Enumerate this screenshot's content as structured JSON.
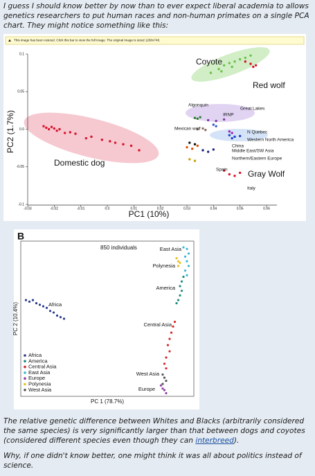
{
  "post": {
    "intro": "I guess I should know better by now than to ever expect liberal academia to allows genetics researchers to put human races and non-human primates on a single PCA chart. They might notice something like this:",
    "body": [
      [
        "The relative genetic difference between Whites and Blacks (arbitrarily considered the same species) is very significantly larger than that between dogs and coyotes (considered different species even though they can ",
        "interbreed",
        ")."
      ],
      [
        "Why, if one didn't know better, one might think it was all about politics instead of science."
      ]
    ]
  },
  "notice": "This image has been resized. Click this bar to view the full image. The original image is sized 1280x748.",
  "chart_data": [
    {
      "type": "scatter",
      "xlabel": "PC1 (10%)",
      "ylabel": "PC2 (1.7%)",
      "xlim": [
        -0.03,
        0.06
      ],
      "ylim": [
        -0.1,
        0.1
      ],
      "xticks": [
        -0.03,
        -0.02,
        -0.01,
        {
          "value": 0,
          "label": "0.0"
        },
        0.01,
        0.02,
        0.03,
        0.04,
        0.05,
        0.06
      ],
      "yticks": [
        -0.1,
        -0.05,
        {
          "value": 0,
          "label": "0.0"
        },
        0.05,
        0.1
      ],
      "annotations": [
        "Gray Wolf"
      ],
      "series": [
        {
          "name": "Domestic dog",
          "color": "#d9142b",
          "x": [
            -0.024,
            -0.023,
            -0.022,
            -0.021,
            -0.02,
            -0.019,
            -0.018,
            -0.016,
            -0.014,
            -0.012,
            -0.008,
            -0.006,
            -0.002,
            0.001,
            0.003,
            0.006,
            0.009,
            0.012
          ],
          "y": [
            0.004,
            0.002,
            0.0,
            0.003,
            0.001,
            -0.002,
            0.0,
            -0.005,
            -0.004,
            -0.006,
            -0.012,
            -0.01,
            -0.014,
            -0.016,
            -0.018,
            -0.02,
            -0.022,
            -0.028
          ]
        },
        {
          "name": "Coyote",
          "color": "#6cc04a",
          "x": [
            0.039,
            0.042,
            0.044,
            0.046,
            0.048,
            0.05,
            0.052,
            0.054,
            0.047,
            0.043
          ],
          "y": [
            0.075,
            0.08,
            0.085,
            0.088,
            0.09,
            0.093,
            0.095,
            0.098,
            0.083,
            0.077
          ]
        },
        {
          "name": "Red wolf",
          "color": "#d9142b",
          "x": [
            0.052,
            0.054,
            0.055,
            0.056
          ],
          "y": [
            0.09,
            0.087,
            0.083,
            0.085
          ]
        },
        {
          "name": "Algonquin",
          "color": "#2e7d32",
          "x": [
            0.033,
            0.034,
            0.035
          ],
          "y": [
            0.015,
            0.014,
            0.016
          ]
        },
        {
          "name": "Great Lakes",
          "color": "#7b3fa0",
          "x": [
            0.038,
            0.041,
            0.044
          ],
          "y": [
            0.012,
            0.011,
            0.013
          ]
        },
        {
          "name": "IRNP",
          "color": "#3a5fcd",
          "x": [
            0.04,
            0.041
          ],
          "y": [
            0.006,
            0.004
          ]
        },
        {
          "name": "Mexican wolf",
          "color": "#8d6e63",
          "x": [
            0.034,
            0.036,
            0.037
          ],
          "y": [
            0.0,
            0.001,
            -0.001
          ]
        },
        {
          "name": "N Quebec",
          "color": "#9c27b0",
          "x": [
            0.046,
            0.047
          ],
          "y": [
            -0.003,
            -0.005
          ]
        },
        {
          "name": "Western North America",
          "color": "#1e40c8",
          "x": [
            0.046,
            0.048,
            0.05,
            0.047
          ],
          "y": [
            -0.008,
            -0.01,
            -0.009,
            -0.012
          ]
        },
        {
          "name": "China",
          "color": "#111111",
          "x": [
            0.031,
            0.033
          ],
          "y": [
            -0.018,
            -0.02
          ]
        },
        {
          "name": "Middle East/SW Asia",
          "color": "#e65100",
          "x": [
            0.03,
            0.032,
            0.034
          ],
          "y": [
            -0.024,
            -0.026,
            -0.022
          ]
        },
        {
          "name": "Northern/Eastern Europe",
          "color": "#1a237e",
          "x": [
            0.036,
            0.038,
            0.04
          ],
          "y": [
            -0.028,
            -0.03,
            -0.027
          ]
        },
        {
          "name": "Spain",
          "color": "#c8a000",
          "x": [
            0.031,
            0.033
          ],
          "y": [
            -0.04,
            -0.042
          ]
        },
        {
          "name": "Italy",
          "color": "#d9142b",
          "x": [
            0.046,
            0.048,
            0.05,
            0.044
          ],
          "y": [
            -0.06,
            -0.062,
            -0.058,
            -0.055
          ]
        }
      ]
    },
    {
      "type": "scatter",
      "panel": "B",
      "xlabel": "PC 1 (78.7%)",
      "ylabel": "PC 2 (10.4%)",
      "annotations": [
        "850 individuals"
      ],
      "xlim": [
        0,
        1
      ],
      "ylim": [
        0,
        1
      ],
      "series": [
        {
          "name": "Africa",
          "color": "#2b3a8f",
          "x": [
            0.03,
            0.05,
            0.07,
            0.09,
            0.11,
            0.13,
            0.15,
            0.17,
            0.19,
            0.21,
            0.23,
            0.25
          ],
          "y": [
            0.62,
            0.61,
            0.62,
            0.6,
            0.59,
            0.58,
            0.57,
            0.55,
            0.54,
            0.52,
            0.51,
            0.5
          ]
        },
        {
          "name": "America",
          "color": "#1f8a7a",
          "x": [
            0.94,
            0.93,
            0.92,
            0.93,
            0.92,
            0.91,
            0.9
          ],
          "y": [
            0.77,
            0.74,
            0.71,
            0.68,
            0.65,
            0.62,
            0.6
          ]
        },
        {
          "name": "Central Asia",
          "color": "#d62728",
          "x": [
            0.89,
            0.88,
            0.87,
            0.86,
            0.85,
            0.86,
            0.84,
            0.83,
            0.84
          ],
          "y": [
            0.48,
            0.45,
            0.41,
            0.37,
            0.33,
            0.29,
            0.25,
            0.21,
            0.18
          ]
        },
        {
          "name": "East Asia",
          "color": "#39b6d8",
          "x": [
            0.94,
            0.96,
            0.97,
            0.95,
            0.96,
            0.97,
            0.95,
            0.96
          ],
          "y": [
            0.96,
            0.95,
            0.92,
            0.9,
            0.87,
            0.84,
            0.81,
            0.78
          ]
        },
        {
          "name": "Europe",
          "color": "#8e3fa0",
          "x": [
            0.81,
            0.82,
            0.83,
            0.84
          ],
          "y": [
            0.07,
            0.05,
            0.04,
            0.02
          ]
        },
        {
          "name": "Polynesia",
          "color": "#e6c229",
          "x": [
            0.9,
            0.91,
            0.92,
            0.91
          ],
          "y": [
            0.89,
            0.87,
            0.86,
            0.84
          ]
        },
        {
          "name": "West Asia",
          "color": "#555555",
          "x": [
            0.82,
            0.83,
            0.84,
            0.82
          ],
          "y": [
            0.14,
            0.12,
            0.1,
            0.08
          ]
        }
      ]
    }
  ]
}
